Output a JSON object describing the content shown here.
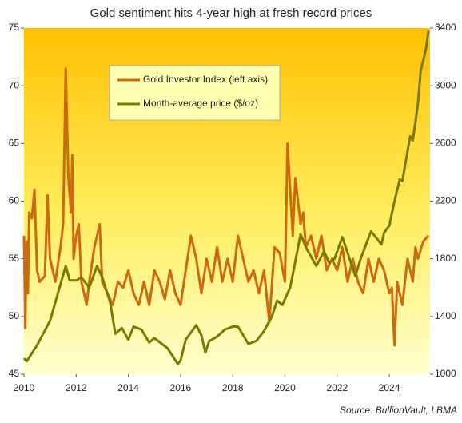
{
  "chart_data": {
    "type": "line",
    "title": "Gold sentiment hits 4-year high at fresh record prices",
    "source": "Source: BullionVault, LBMA",
    "xlim": [
      2010,
      2025.56
    ],
    "xticks": [
      2010,
      2012,
      2014,
      2016,
      2018,
      2020,
      2022,
      2024
    ],
    "ylim": [
      45,
      75
    ],
    "yticks": [
      45,
      50,
      55,
      60,
      65,
      70,
      75
    ],
    "y2lim": [
      1000,
      3400
    ],
    "y2ticks": [
      1000,
      1400,
      1800,
      2200,
      2600,
      3000,
      3400
    ],
    "legend": "upper left",
    "series": [
      {
        "name": "Gold Investor Index (left axis)",
        "color": "#cc6a10",
        "axis": "y",
        "x": [
          2010,
          2010.05,
          2010.1,
          2010.15,
          2010.2,
          2010.3,
          2010.4,
          2010.5,
          2010.6,
          2010.8,
          2010.9,
          2011.0,
          2011.2,
          2011.4,
          2011.5,
          2011.6,
          2011.7,
          2011.8,
          2011.85,
          2011.9,
          2012.0,
          2012.1,
          2012.2,
          2012.4,
          2012.5,
          2012.7,
          2012.9,
          2013.0,
          2013.2,
          2013.4,
          2013.6,
          2013.8,
          2014.0,
          2014.2,
          2014.4,
          2014.6,
          2014.8,
          2015.0,
          2015.2,
          2015.4,
          2015.6,
          2015.8,
          2016.0,
          2016.2,
          2016.4,
          2016.6,
          2016.8,
          2017.0,
          2017.2,
          2017.4,
          2017.6,
          2017.8,
          2018.0,
          2018.2,
          2018.4,
          2018.6,
          2018.8,
          2019.0,
          2019.2,
          2019.4,
          2019.6,
          2019.8,
          2020.0,
          2020.1,
          2020.3,
          2020.4,
          2020.6,
          2020.7,
          2020.8,
          2021.0,
          2021.2,
          2021.4,
          2021.6,
          2021.8,
          2022.0,
          2022.2,
          2022.4,
          2022.6,
          2022.8,
          2023.0,
          2023.2,
          2023.4,
          2023.6,
          2023.8,
          2024.0,
          2024.1,
          2024.2,
          2024.3,
          2024.5,
          2024.7,
          2024.9,
          2025.0,
          2025.1,
          2025.3,
          2025.5
        ],
        "values": [
          57,
          49,
          56.5,
          52,
          59,
          58.5,
          61,
          54,
          53,
          53.5,
          60.5,
          55,
          53,
          56,
          58,
          71.5,
          62,
          59,
          64,
          55,
          57,
          58,
          53,
          51,
          53,
          56,
          58,
          53,
          52,
          51,
          53,
          52.5,
          54,
          52,
          51,
          53,
          51,
          54,
          53,
          51.5,
          54,
          52,
          51,
          54,
          57,
          55,
          52,
          55,
          53,
          56,
          53,
          55,
          53,
          57,
          55,
          53,
          54,
          52,
          54,
          49.5,
          56,
          55.5,
          53,
          65,
          57,
          62,
          58,
          59,
          56,
          57,
          55,
          57,
          54,
          55,
          54,
          56,
          53,
          55,
          53,
          52,
          55,
          53,
          55,
          54,
          52,
          52.5,
          47.5,
          53,
          51,
          55,
          53,
          56,
          55,
          56.5,
          57
        ]
      },
      {
        "name": "Month-average price ($/oz)",
        "color": "#7a7a00",
        "axis": "y2",
        "x": [
          2010,
          2010.1,
          2010.5,
          2011.0,
          2011.6,
          2011.75,
          2012.0,
          2012.2,
          2012.5,
          2012.8,
          2013.0,
          2013.3,
          2013.5,
          2013.75,
          2014.0,
          2014.2,
          2014.5,
          2014.8,
          2015.0,
          2015.5,
          2015.9,
          2016.0,
          2016.2,
          2016.6,
          2016.8,
          2016.95,
          2017.1,
          2017.4,
          2017.7,
          2018.0,
          2018.2,
          2018.6,
          2018.9,
          2019.2,
          2019.5,
          2019.7,
          2019.9,
          2020.2,
          2020.6,
          2020.8,
          2021.2,
          2021.5,
          2021.7,
          2021.9,
          2022.2,
          2022.7,
          2022.9,
          2023.3,
          2023.7,
          2023.8,
          2024.0,
          2024.2,
          2024.4,
          2024.5,
          2024.8,
          2024.9,
          2025.1,
          2025.2,
          2025.4,
          2025.5
        ],
        "values": [
          1110,
          1090,
          1200,
          1370,
          1750,
          1650,
          1650,
          1670,
          1600,
          1750,
          1670,
          1500,
          1280,
          1320,
          1240,
          1330,
          1310,
          1220,
          1250,
          1180,
          1070,
          1095,
          1240,
          1340,
          1270,
          1150,
          1230,
          1260,
          1310,
          1330,
          1330,
          1210,
          1230,
          1300,
          1400,
          1510,
          1480,
          1600,
          1970,
          1880,
          1750,
          1850,
          1770,
          1800,
          1950,
          1680,
          1800,
          1990,
          1900,
          1980,
          2030,
          2200,
          2350,
          2340,
          2650,
          2620,
          2880,
          3100,
          3250,
          3380
        ]
      }
    ]
  }
}
